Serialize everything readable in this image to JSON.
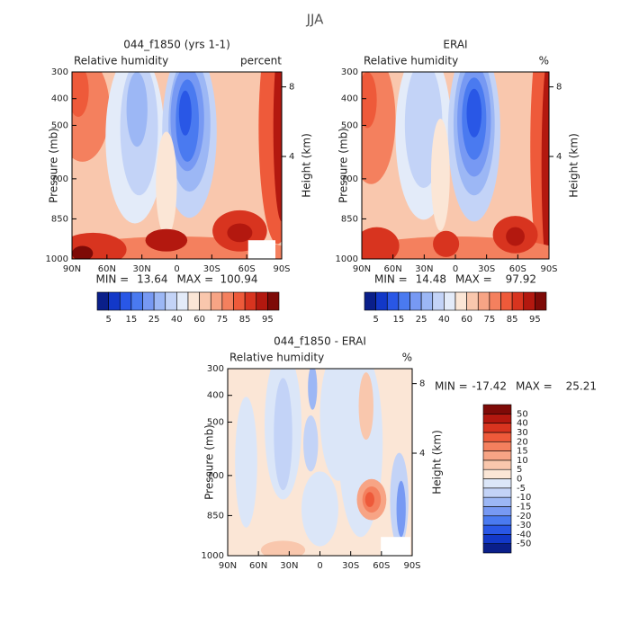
{
  "title": "JJA",
  "panels": [
    {
      "title": "044_f1850 (yrs 1-1)",
      "left_label": "Relative humidity",
      "right_label": "percent",
      "ylabel": "Pressure (mb)",
      "y2label": "Height (km)",
      "ylim": [
        300,
        1000
      ],
      "yticks": [
        300,
        400,
        500,
        700,
        850,
        1000
      ],
      "y2ticks": [
        8,
        4
      ],
      "xlim": [
        90,
        -90
      ],
      "xticks": [
        {
          "value": 90,
          "label": "90N"
        },
        {
          "value": 60,
          "label": "60N"
        },
        {
          "value": 30,
          "label": "30N"
        },
        0,
        {
          "value": -30,
          "label": "30S"
        },
        {
          "value": -60,
          "label": "60S"
        },
        {
          "value": -90,
          "label": "90S"
        }
      ],
      "min_label": "MIN =",
      "min": 13.64,
      "max_label": "MAX =",
      "max": 100.94,
      "colorbar": {
        "labels": [
          5,
          15,
          25,
          40,
          60,
          75,
          85,
          95
        ],
        "colors": [
          "#0a1f8a",
          "#1238c8",
          "#2957e6",
          "#4a7af0",
          "#7799f3",
          "#9cb7f5",
          "#c3d3f7",
          "#e3ebf9",
          "#fbe6d6",
          "#f9c7ad",
          "#f7a485",
          "#f4805e",
          "#ee5a3a",
          "#d8341f",
          "#b3180f",
          "#7e0a07"
        ]
      }
    },
    {
      "title": "ERAI",
      "left_label": "Relative humidity",
      "right_label": "%",
      "ylabel": "Pressure (mb)",
      "y2label": "Height (km)",
      "ylim": [
        300,
        1000
      ],
      "yticks": [
        300,
        400,
        500,
        700,
        850,
        1000
      ],
      "y2ticks": [
        8,
        4
      ],
      "xlim": [
        90,
        -90
      ],
      "xticks": [
        {
          "value": 90,
          "label": "90N"
        },
        {
          "value": 60,
          "label": "60N"
        },
        {
          "value": 30,
          "label": "30N"
        },
        0,
        {
          "value": -30,
          "label": "30S"
        },
        {
          "value": -60,
          "label": "60S"
        },
        {
          "value": -90,
          "label": "90S"
        }
      ],
      "min_label": "MIN =",
      "min": 14.48,
      "max_label": "MAX =",
      "max": 97.92,
      "colorbar": {
        "labels": [
          5,
          15,
          25,
          40,
          60,
          75,
          85,
          95
        ],
        "colors": [
          "#0a1f8a",
          "#1238c8",
          "#2957e6",
          "#4a7af0",
          "#7799f3",
          "#9cb7f5",
          "#c3d3f7",
          "#e3ebf9",
          "#fbe6d6",
          "#f9c7ad",
          "#f7a485",
          "#f4805e",
          "#ee5a3a",
          "#d8341f",
          "#b3180f",
          "#7e0a07"
        ]
      }
    },
    {
      "title": "044_f1850 - ERAI",
      "left_label": "Relative humidity",
      "right_label": "%",
      "ylabel": "Pressure (mb)",
      "y2label": "Height (km)",
      "ylim": [
        300,
        1000
      ],
      "yticks": [
        300,
        400,
        500,
        700,
        850,
        1000
      ],
      "y2ticks": [
        8,
        4
      ],
      "xlim": [
        90,
        -90
      ],
      "xticks": [
        {
          "value": 90,
          "label": "90N"
        },
        {
          "value": 60,
          "label": "60N"
        },
        {
          "value": 30,
          "label": "30N"
        },
        0,
        {
          "value": -30,
          "label": "30S"
        },
        {
          "value": -60,
          "label": "60S"
        },
        {
          "value": -90,
          "label": "90S"
        }
      ],
      "min_label": "MIN =",
      "min": -17.42,
      "max_label": "MAX =",
      "max": 25.21,
      "colorbar": {
        "labels": [
          -50,
          -40,
          -30,
          -20,
          -15,
          -10,
          -5,
          0,
          5,
          10,
          15,
          20,
          30,
          40,
          50
        ],
        "colors": [
          "#0a1f8a",
          "#1238c8",
          "#2957e6",
          "#4a7af0",
          "#7799f3",
          "#9cb7f5",
          "#c3d3f7",
          "#dbe6f8",
          "#fbe6d6",
          "#f9c7ad",
          "#f7a485",
          "#f4805e",
          "#ee5a3a",
          "#d8341f",
          "#b3180f",
          "#7e0a07"
        ]
      }
    }
  ]
}
